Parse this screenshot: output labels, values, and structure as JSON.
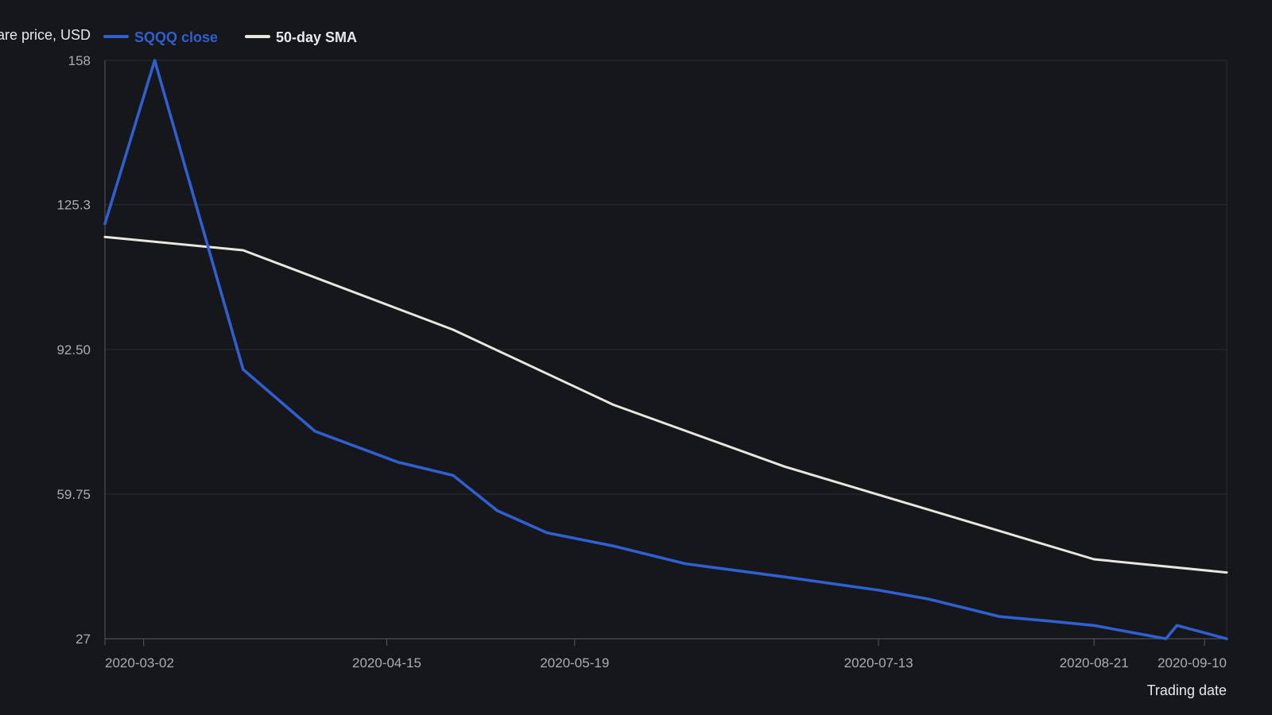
{
  "chart_data": {
    "type": "line",
    "ylabel": "Share price, USD",
    "xlabel": "Trading date",
    "x_tick_labels": [
      "2020-03-02",
      "2020-04-15",
      "2020-05-19",
      "2020-07-13",
      "2020-08-21",
      "2020-09-10"
    ],
    "y_tick_labels": [
      "158",
      "125.3",
      "92.50",
      "59.75",
      "27"
    ],
    "ylim": [
      27,
      158
    ],
    "xlim": [
      "2020-02-24",
      "2020-09-14"
    ],
    "grid": "horizontal",
    "legend_position": "top-left",
    "series": [
      {
        "name": "SQQQ close",
        "color": "#2f5fd0",
        "points": [
          [
            "2020-02-24",
            121
          ],
          [
            "2020-03-04",
            158
          ],
          [
            "2020-03-20",
            88
          ],
          [
            "2020-04-02",
            74
          ],
          [
            "2020-04-17",
            67
          ],
          [
            "2020-04-27",
            64
          ],
          [
            "2020-05-05",
            56
          ],
          [
            "2020-05-14",
            51
          ],
          [
            "2020-05-26",
            48
          ],
          [
            "2020-06-08",
            44
          ],
          [
            "2020-06-26",
            41
          ],
          [
            "2020-07-13",
            38
          ],
          [
            "2020-07-22",
            36
          ],
          [
            "2020-08-04",
            32
          ],
          [
            "2020-08-13",
            31
          ],
          [
            "2020-08-21",
            30
          ],
          [
            "2020-09-03",
            27
          ],
          [
            "2020-09-05",
            30
          ],
          [
            "2020-09-14",
            27
          ]
        ]
      },
      {
        "name": "50-day SMA",
        "color": "#e8e6e1",
        "points": [
          [
            "2020-02-24",
            118
          ],
          [
            "2020-03-20",
            115
          ],
          [
            "2020-04-27",
            97
          ],
          [
            "2020-05-26",
            80
          ],
          [
            "2020-06-26",
            66
          ],
          [
            "2020-08-21",
            45
          ],
          [
            "2020-09-14",
            42
          ]
        ]
      }
    ]
  },
  "colors": {
    "background": "#15171b",
    "grid": "#2a2d33",
    "axis": "#4a4e56"
  }
}
